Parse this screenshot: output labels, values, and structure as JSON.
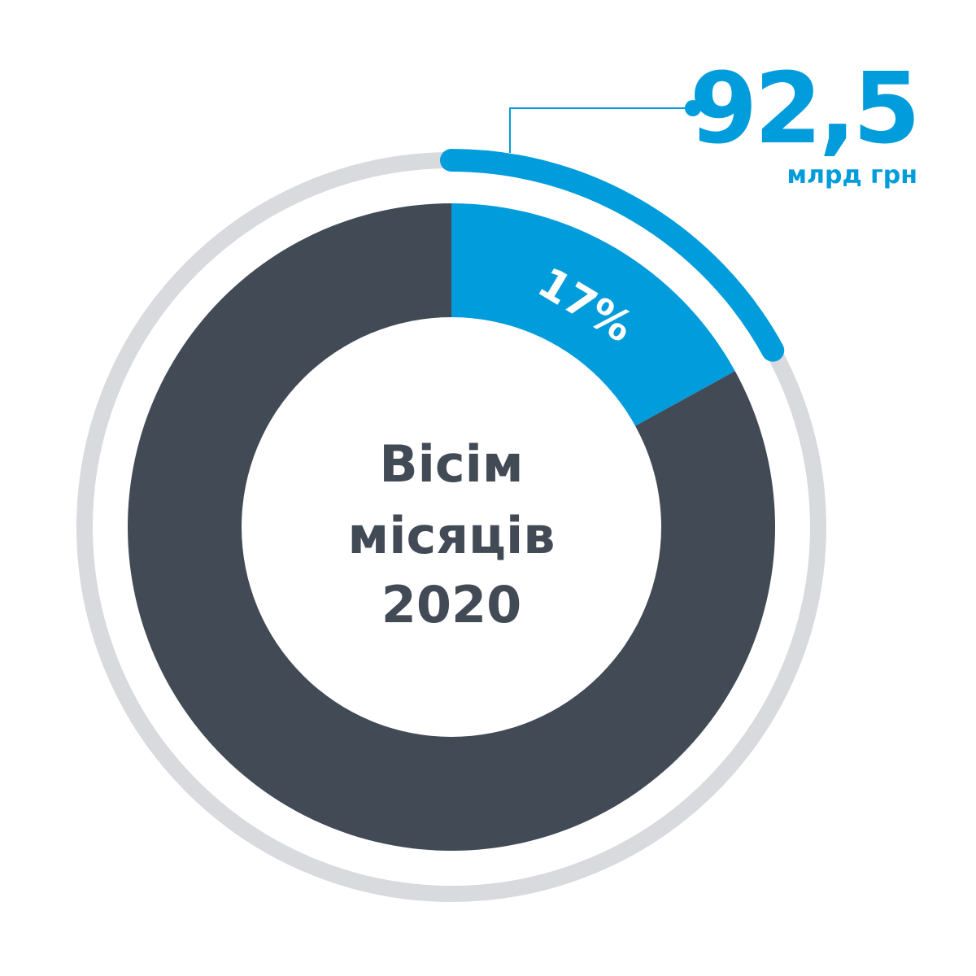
{
  "colors": {
    "accent": "#009cdb",
    "dark": "#424a55",
    "ring": "#d9dadd",
    "background": "#ffffff"
  },
  "chart_data": {
    "type": "pie",
    "donut": true,
    "slices": [
      {
        "label": "17%",
        "value": 17,
        "color": "#009cdb"
      },
      {
        "label": "",
        "value": 83,
        "color": "#424a55"
      }
    ],
    "center_label": [
      "Вісім",
      "місяців",
      "2020"
    ],
    "callout": {
      "value": "92,5",
      "unit": "млрд грн"
    },
    "outer_ring_progress": 0.17
  }
}
